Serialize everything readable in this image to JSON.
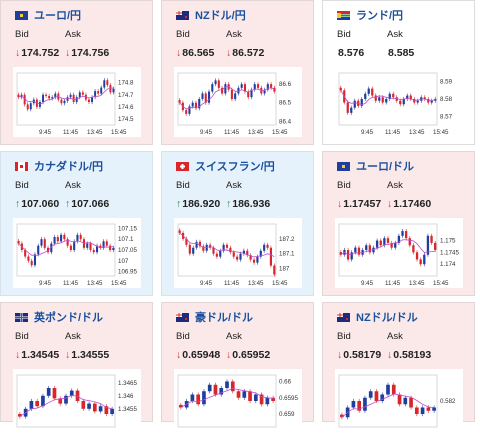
{
  "labels": {
    "bid": "Bid",
    "ask": "Ask"
  },
  "colors": {
    "up_candle": "#1f3f9e",
    "down_candle": "#d8262b",
    "ma_line": "#c04bd0"
  },
  "cards": [
    {
      "name": "ユーロ/円",
      "flag_icon": "eu-jp-flag-icon",
      "dir": "down",
      "bid_arrow": "↓",
      "bid": "174.752",
      "ask_arrow": "↓",
      "ask": "174.756",
      "chart_data": {
        "type": "candlestick",
        "x_ticks": [
          "9:45",
          "11:45",
          "13:45",
          "15:45"
        ],
        "y_ticks": [
          "174.8",
          "174.7",
          "174.6",
          "174.5"
        ],
        "ylim": [
          174.45,
          174.88
        ],
        "close": [
          174.68,
          174.7,
          174.62,
          174.58,
          174.63,
          174.66,
          174.6,
          174.64,
          174.7,
          174.69,
          174.67,
          174.68,
          174.71,
          174.66,
          174.63,
          174.65,
          174.68,
          174.7,
          174.64,
          174.68,
          174.72,
          174.7,
          174.66,
          174.64,
          174.68,
          174.73,
          174.71,
          174.76,
          174.82,
          174.78,
          174.72,
          174.75
        ]
      }
    },
    {
      "name": "NZドル/円",
      "flag_icon": "nz-jp-flag-icon",
      "dir": "down",
      "bid_arrow": "↓",
      "bid": "86.565",
      "ask_arrow": "↓",
      "ask": "86.572",
      "chart_data": {
        "type": "candlestick",
        "x_ticks": [
          "9:45",
          "11:45",
          "13:45",
          "15:45"
        ],
        "y_ticks": [
          "86.6",
          "86.5",
          "86.4"
        ],
        "ylim": [
          86.38,
          86.66
        ],
        "close": [
          86.5,
          86.46,
          86.44,
          86.48,
          86.5,
          86.47,
          86.52,
          86.55,
          86.5,
          86.56,
          86.6,
          86.62,
          86.58,
          86.55,
          86.6,
          86.57,
          86.52,
          86.55,
          86.58,
          86.6,
          86.56,
          86.53,
          86.57,
          86.6,
          86.58,
          86.55,
          86.57,
          86.6,
          86.58,
          86.56
        ]
      }
    },
    {
      "name": "ランド/円",
      "flag_icon": "za-jp-flag-icon",
      "dir": "flat",
      "bid_arrow": "",
      "bid": "8.576",
      "ask_arrow": "",
      "ask": "8.585",
      "chart_data": {
        "type": "candlestick",
        "x_ticks": [
          "9:45",
          "11:45",
          "13:45",
          "15:45"
        ],
        "y_ticks": [
          "8.59",
          "8.58",
          "8.57"
        ],
        "ylim": [
          8.565,
          8.595
        ],
        "close": [
          8.585,
          8.578,
          8.572,
          8.575,
          8.579,
          8.576,
          8.58,
          8.583,
          8.586,
          8.582,
          8.579,
          8.581,
          8.578,
          8.58,
          8.583,
          8.581,
          8.579,
          8.577,
          8.58,
          8.582,
          8.58,
          8.578,
          8.579,
          8.581,
          8.58,
          8.578,
          8.579,
          8.58
        ]
      }
    },
    {
      "name": "カナダドル/円",
      "flag_icon": "ca-jp-flag-icon",
      "dir": "up",
      "bid_arrow": "↑",
      "bid": "107.060",
      "ask_arrow": "↑",
      "ask": "107.066",
      "chart_data": {
        "type": "candlestick",
        "x_ticks": [
          "9:45",
          "11:45",
          "13:45",
          "15:45"
        ],
        "y_ticks": [
          "107.15",
          "107.1",
          "107.05",
          "107",
          "106.95"
        ],
        "ylim": [
          106.93,
          107.17
        ],
        "close": [
          107.08,
          107.05,
          107.02,
          107.0,
          106.98,
          107.03,
          107.07,
          107.1,
          107.06,
          107.04,
          107.08,
          107.11,
          107.09,
          107.12,
          107.1,
          107.07,
          107.05,
          107.09,
          107.12,
          107.1,
          107.06,
          107.08,
          107.05,
          107.04,
          107.07,
          107.06,
          107.09,
          107.07,
          107.05,
          107.06
        ]
      }
    },
    {
      "name": "スイスフラン/円",
      "flag_icon": "ch-jp-flag-icon",
      "dir": "up",
      "bid_arrow": "↑",
      "bid": "186.920",
      "ask_arrow": "↑",
      "ask": "186.936",
      "chart_data": {
        "type": "candlestick",
        "x_ticks": [
          "9:45",
          "11:45",
          "13:45",
          "15:45"
        ],
        "y_ticks": [
          "187.2",
          "187.1",
          "187"
        ],
        "ylim": [
          186.95,
          187.3
        ],
        "close": [
          187.24,
          187.2,
          187.16,
          187.1,
          187.14,
          187.18,
          187.15,
          187.12,
          187.16,
          187.14,
          187.1,
          187.08,
          187.12,
          187.16,
          187.14,
          187.11,
          187.08,
          187.06,
          187.1,
          187.12,
          187.09,
          187.06,
          187.04,
          187.08,
          187.12,
          187.16,
          187.14,
          187.02,
          186.96
        ]
      }
    },
    {
      "name": "ユーロ/ドル",
      "flag_icon": "eu-us-flag-icon",
      "dir": "down",
      "bid_arrow": "↓",
      "bid": "1.17457",
      "ask_arrow": "↓",
      "ask": "1.17460",
      "chart_data": {
        "type": "candlestick",
        "x_ticks": [
          "9:45",
          "11:45",
          "13:45",
          "15:45"
        ],
        "y_ticks": [
          "1.175",
          "1.1745",
          "1.174"
        ],
        "ylim": [
          1.1735,
          1.1757
        ],
        "close": [
          1.1744,
          1.1746,
          1.1742,
          1.1745,
          1.1747,
          1.1744,
          1.1746,
          1.1748,
          1.1745,
          1.1747,
          1.175,
          1.1748,
          1.1751,
          1.1749,
          1.1747,
          1.1749,
          1.1752,
          1.1754,
          1.1751,
          1.1748,
          1.1745,
          1.1742,
          1.174,
          1.1744,
          1.1752,
          1.1749,
          1.1746
        ]
      }
    },
    {
      "name": "英ポンド/ドル",
      "flag_icon": "gb-us-flag-icon",
      "dir": "down",
      "bid_arrow": "↓",
      "bid": "1.34545",
      "ask_arrow": "↓",
      "ask": "1.34555",
      "chart_data": {
        "type": "candlestick",
        "x_ticks": [],
        "y_ticks": [
          "1.3465",
          "1.346",
          "1.3455"
        ],
        "ylim": [
          1.3448,
          1.3468
        ],
        "close": [
          1.3452,
          1.3455,
          1.3458,
          1.3456,
          1.346,
          1.3463,
          1.3459,
          1.3457,
          1.346,
          1.3462,
          1.3458,
          1.3455,
          1.3457,
          1.3454,
          1.3456,
          1.3453,
          1.3455
        ]
      }
    },
    {
      "name": "豪ドル/ドル",
      "flag_icon": "au-us-flag-icon",
      "dir": "down",
      "bid_arrow": "↓",
      "bid": "0.65948",
      "ask_arrow": "↓",
      "ask": "0.65952",
      "chart_data": {
        "type": "candlestick",
        "x_ticks": [],
        "y_ticks": [
          "0.66",
          "0.6595",
          "0.659"
        ],
        "ylim": [
          0.6586,
          0.6602
        ],
        "close": [
          0.6592,
          0.6594,
          0.6596,
          0.6593,
          0.6597,
          0.6599,
          0.6596,
          0.6598,
          0.66,
          0.6597,
          0.6595,
          0.6597,
          0.6594,
          0.6596,
          0.6593,
          0.6595,
          0.6594
        ]
      }
    },
    {
      "name": "NZドル/ドル",
      "flag_icon": "nz-us-flag-icon",
      "dir": "down",
      "bid_arrow": "↓",
      "bid": "0.58179",
      "ask_arrow": "↓",
      "ask": "0.58193",
      "chart_data": {
        "type": "candlestick",
        "x_ticks": [],
        "y_ticks": [
          "0.582"
        ],
        "ylim": [
          0.5812,
          0.5828
        ],
        "close": [
          0.5815,
          0.5818,
          0.582,
          0.5817,
          0.5821,
          0.5823,
          0.582,
          0.5822,
          0.5825,
          0.5822,
          0.5819,
          0.5821,
          0.5818,
          0.5816,
          0.5818,
          0.5817,
          0.5818
        ]
      }
    }
  ]
}
